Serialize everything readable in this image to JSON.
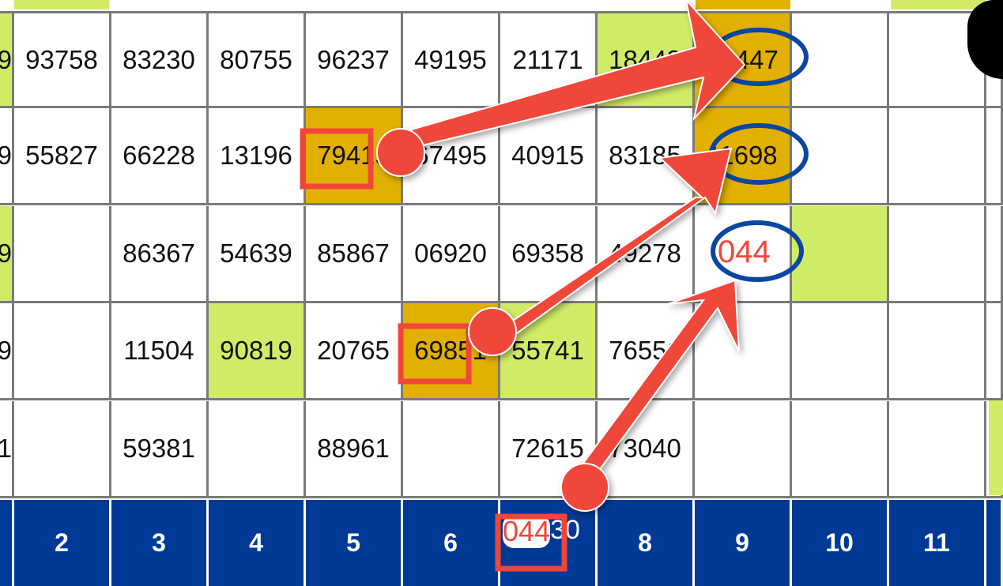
{
  "colors": {
    "green": "#d0ec67",
    "gold": "#e2b000",
    "header": "#003a96",
    "arrow": "#f0463a",
    "circle": "#0b46a0"
  },
  "headers": [
    "",
    "2",
    "3",
    "4",
    "5",
    "6",
    "7",
    "8",
    "9",
    "10",
    "11"
  ],
  "rows": [
    [
      "9",
      "93758",
      "83230",
      "80755",
      "96237",
      "49195",
      "21171",
      "18448",
      "98447",
      "",
      ""
    ],
    [
      "9",
      "55827",
      "66228",
      "13196",
      "79415",
      "67495",
      "40915",
      "83185",
      "11698",
      "",
      ""
    ],
    [
      "9",
      "",
      "86367",
      "54639",
      "85867",
      "06920",
      "69358",
      "49278",
      "",
      "",
      ""
    ],
    [
      "9",
      "",
      "11504",
      "90819",
      "20765",
      "69851",
      "55741",
      "76551",
      "",
      "",
      ""
    ],
    [
      "1",
      "",
      "59381",
      "",
      "88961",
      "",
      "72615",
      "73040",
      "",
      "",
      ""
    ]
  ],
  "highlights": {
    "green": [
      [
        0,
        0
      ],
      [
        2,
        0
      ],
      [
        3,
        3
      ],
      [
        3,
        6
      ],
      [
        0,
        7
      ],
      [
        2,
        9
      ]
    ],
    "gold": [
      [
        1,
        4
      ],
      [
        3,
        5
      ],
      [
        0,
        8
      ],
      [
        1,
        8
      ]
    ]
  },
  "annotations": {
    "circled_result": "044",
    "boxed_header_text": "044",
    "header_overlay_rest": "30",
    "boxed_794": "794",
    "boxed_698": "698"
  }
}
